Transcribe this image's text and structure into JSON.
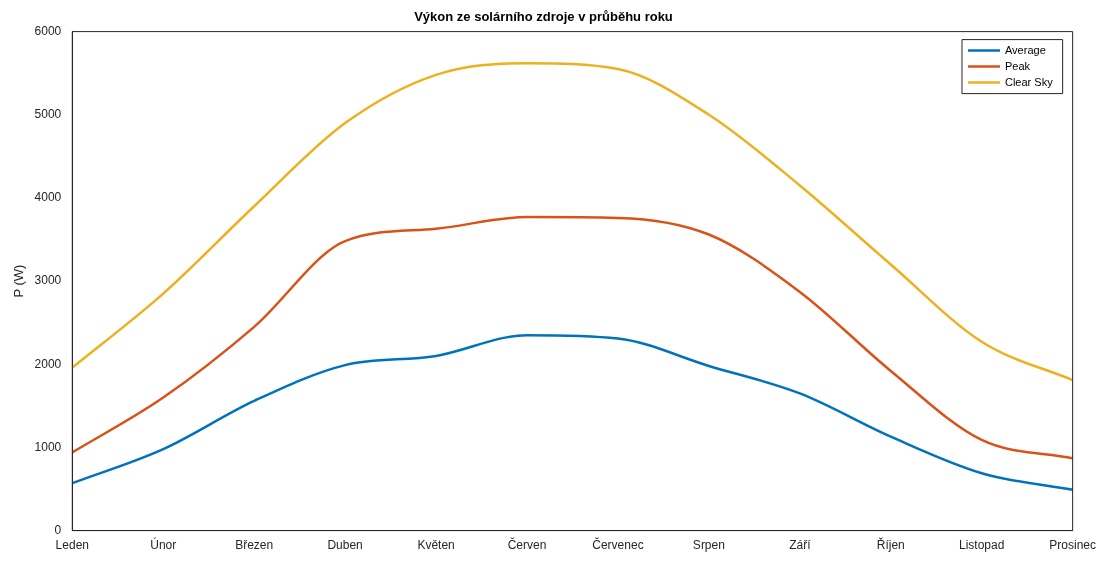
{
  "chart_data": {
    "type": "line",
    "title": "Výkon ze solárního zdroje v průběhu roku",
    "ylabel": "P (W)",
    "categories": [
      "Leden",
      "Únor",
      "Březen",
      "Duben",
      "Květen",
      "Červen",
      "Červenec",
      "Srpen",
      "Září",
      "Říjen",
      "Listopad",
      "Prosinec"
    ],
    "series": [
      {
        "name": "Average",
        "color": "#0072bd",
        "values": [
          570,
          980,
          1560,
          1990,
          2100,
          2350,
          2310,
          1980,
          1650,
          1130,
          690,
          490
        ]
      },
      {
        "name": "Peak",
        "color": "#d95319",
        "values": [
          940,
          1600,
          2450,
          3480,
          3630,
          3770,
          3760,
          3560,
          2870,
          1920,
          1090,
          870
        ]
      },
      {
        "name": "Clear Sky",
        "color": "#edb120",
        "values": [
          1960,
          2850,
          3900,
          4900,
          5480,
          5620,
          5550,
          5000,
          4150,
          3200,
          2270,
          1810
        ]
      }
    ],
    "ylim": [
      0,
      6000
    ],
    "yticks": [
      0,
      1000,
      2000,
      3000,
      4000,
      5000,
      6000
    ],
    "grid": false,
    "legend": "top right",
    "marker": "none",
    "line_style": "solid"
  }
}
